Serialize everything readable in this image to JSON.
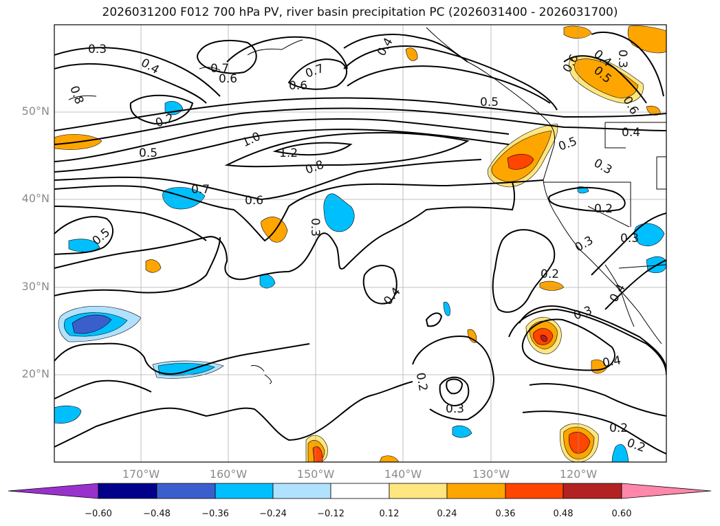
{
  "title": "2026031200 F012 700 hPa PV, river basin precipitation PC (2026031400 - 2026031700)",
  "lat_labels": [
    "50°N",
    "40°N",
    "30°N",
    "20°N"
  ],
  "lon_labels": [
    "170°W",
    "160°W",
    "150°W",
    "140°W",
    "130°W",
    "120°W"
  ],
  "contour_labels": [
    "0.3",
    "0.4",
    "0.8",
    "0.7",
    "0.6",
    "0.4",
    "0.7",
    "0.6",
    "0.5",
    "0.2",
    "0.5",
    "1.0",
    "1.2",
    "0.8",
    "0.7",
    "0.6",
    "0.3",
    "0.5",
    "0.4",
    "0.2",
    "0.3",
    "0.2",
    "0.3",
    "0.4",
    "0.3",
    "0.4",
    "0.2",
    "0.3",
    "0.2",
    "0.2",
    "0.6",
    "0.4",
    "0.5",
    "0.3",
    "0.6",
    "0.4",
    "0.5",
    "0.3"
  ],
  "colorbar": {
    "ticks": [
      "−0.60",
      "−0.48",
      "−0.36",
      "−0.24",
      "−0.12",
      "0.12",
      "0.24",
      "0.36",
      "0.48",
      "0.60"
    ],
    "colors": [
      "#9932cc",
      "#00008b",
      "#3a5fcd",
      "#00bfff",
      "#b0e2ff",
      "#ffffff",
      "#ffe680",
      "#ffa500",
      "#ff4500",
      "#b22222",
      "#ff88aa"
    ]
  }
}
